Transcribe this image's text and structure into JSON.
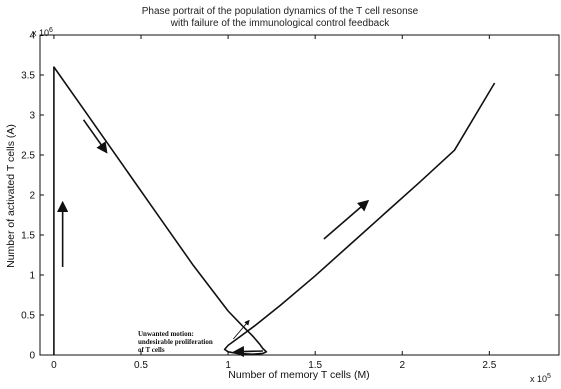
{
  "chart_data": {
    "type": "line",
    "title": "Phase portrait of the population dynamics of the T cell resonse",
    "subtitle": "with failure of the immunological control feedback",
    "xlabel": "Number of memory T cells (M)",
    "ylabel": "Number of activated  T cells (A)",
    "x_multiplier_label": "x 10",
    "x_multiplier_exp": "5",
    "y_multiplier_label": "x 10",
    "y_multiplier_exp": "6",
    "xlim": [
      -0.08,
      2.9
    ],
    "ylim": [
      0,
      4
    ],
    "xticks": [
      0,
      0.5,
      1,
      1.5,
      2,
      2.5
    ],
    "xtick_labels": [
      "0",
      "0.5",
      "1",
      "1.5",
      "2",
      "2.5"
    ],
    "yticks": [
      0,
      0.5,
      1,
      1.5,
      2,
      2.5,
      3,
      3.5,
      4
    ],
    "ytick_labels": [
      "0",
      "0.5",
      "1",
      "1.5",
      "2",
      "2.5",
      "3",
      "3.5",
      "4"
    ],
    "grid": false,
    "series": [
      {
        "x": [
          0.0,
          0.0,
          0.0,
          0.0,
          0.2,
          0.4,
          0.6,
          0.8,
          1.0,
          1.08,
          1.14,
          1.18,
          1.2,
          1.22,
          1.2,
          1.14,
          1.05,
          1.0,
          0.98,
          1.0,
          1.05,
          1.15,
          1.3,
          1.5,
          1.7,
          1.9,
          2.1,
          2.3,
          2.53
        ],
        "y": [
          0.0,
          1.0,
          2.5,
          3.6,
          2.98,
          2.36,
          1.74,
          1.12,
          0.55,
          0.37,
          0.24,
          0.14,
          0.08,
          0.04,
          0.02,
          0.01,
          0.02,
          0.04,
          0.07,
          0.12,
          0.2,
          0.36,
          0.62,
          0.99,
          1.38,
          1.77,
          2.16,
          2.56,
          3.4
        ]
      }
    ],
    "arrows": [
      {
        "from": [
          0.05,
          1.1
        ],
        "to": [
          0.05,
          1.9
        ]
      },
      {
        "from": [
          0.17,
          2.94
        ],
        "to": [
          0.3,
          2.54
        ]
      },
      {
        "from": [
          1.55,
          1.45
        ],
        "to": [
          1.8,
          1.92
        ]
      },
      {
        "from": [
          1.2,
          0.05
        ],
        "to": [
          1.04,
          0.04
        ]
      },
      {
        "from": [
          1.03,
          0.2
        ],
        "to": [
          1.12,
          0.43
        ]
      }
    ],
    "annotation": {
      "lines": [
        "Unwanted motion:",
        "undesirable proliferation",
        "of T cells"
      ],
      "anchor": [
        0.5,
        0.3
      ]
    }
  }
}
